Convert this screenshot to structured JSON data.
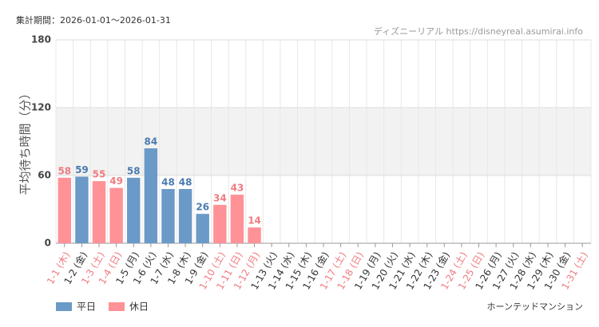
{
  "chart_data": {
    "type": "bar",
    "title": "集計期間：2026-01-01～2026-01-31",
    "source": "ディズニーリアル https://disneyreal.asumirai.info",
    "y_label": "平均待ち時間（分）",
    "footer": "ホーンテッドマンション",
    "categories": [
      "1-1 (木)",
      "1-2 (金)",
      "1-3 (土)",
      "1-4 (日)",
      "1-5 (月)",
      "1-6 (火)",
      "1-7 (水)",
      "1-8 (木)",
      "1-9 (金)",
      "1-10 (土)",
      "1-11 (日)",
      "1-12 (月)",
      "1-13 (火)",
      "1-14 (水)",
      "1-15 (木)",
      "1-16 (金)",
      "1-17 (土)",
      "1-18 (日)",
      "1-19 (月)",
      "1-20 (火)",
      "1-21 (水)",
      "1-22 (木)",
      "1-23 (金)",
      "1-24 (土)",
      "1-25 (日)",
      "1-26 (月)",
      "1-27 (火)",
      "1-28 (水)",
      "1-29 (木)",
      "1-30 (金)",
      "1-31 (土)"
    ],
    "category_colors": [
      "#f07c82",
      "#333333",
      "#f07c82",
      "#f07c82",
      "#333333",
      "#333333",
      "#333333",
      "#333333",
      "#333333",
      "#f07c82",
      "#f07c82",
      "#f07c82",
      "#333333",
      "#333333",
      "#333333",
      "#333333",
      "#f07c82",
      "#f07c82",
      "#333333",
      "#333333",
      "#333333",
      "#333333",
      "#333333",
      "#f07c82",
      "#f07c82",
      "#333333",
      "#333333",
      "#333333",
      "#333333",
      "#333333",
      "#f07c82"
    ],
    "series": [
      {
        "name": "平日",
        "color": "#6b9ac8",
        "label_color": "#4a7bb0",
        "values": [
          null,
          59,
          null,
          null,
          58,
          84,
          48,
          48,
          26,
          null,
          null,
          null,
          null,
          null,
          null,
          null,
          null,
          null,
          null,
          null,
          null,
          null,
          null,
          null,
          null,
          null,
          null,
          null,
          null,
          null,
          null
        ]
      },
      {
        "name": "休日",
        "color": "#ff9297",
        "label_color": "#f07c82",
        "values": [
          58,
          null,
          55,
          49,
          null,
          null,
          null,
          null,
          null,
          34,
          43,
          14,
          null,
          null,
          null,
          null,
          null,
          null,
          null,
          null,
          null,
          null,
          null,
          null,
          null,
          null,
          null,
          null,
          null,
          null,
          null
        ]
      }
    ],
    "ylim": [
      0,
      180
    ],
    "yticks": [
      0,
      60,
      120,
      180
    ],
    "grid": true,
    "alternate_bands": true,
    "legend": "bottom-left"
  }
}
